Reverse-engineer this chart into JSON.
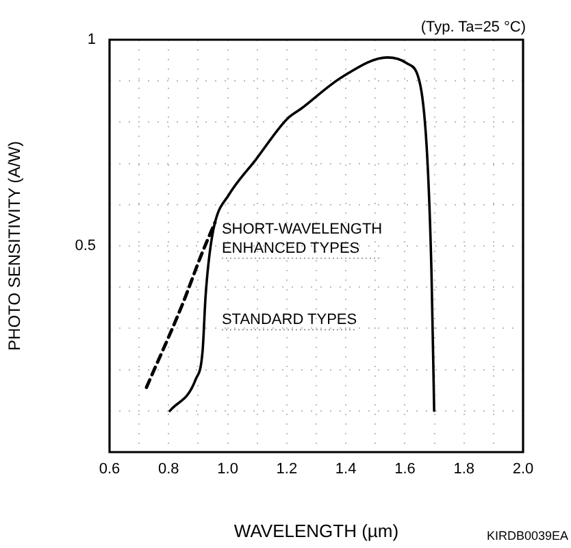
{
  "chart_data": {
    "type": "line",
    "xlabel": "WAVELENGTH (µm)",
    "ylabel": "PHOTO SENSITIVITY (A/W)",
    "annotations": [
      "(Typ. Ta=25 °C)",
      "KIRDB0039EA"
    ],
    "xlim": [
      0.6,
      2.0
    ],
    "xticks": [
      0.6,
      {
        "value": 0.7,
        "label": null
      },
      0.8,
      {
        "value": 0.9,
        "label": null
      },
      {
        "value": 1.0,
        "label": "1.0"
      },
      {
        "value": 1.1,
        "label": null
      },
      1.2,
      {
        "value": 1.3,
        "label": null
      },
      1.4,
      {
        "value": 1.5,
        "label": null
      },
      1.6,
      {
        "value": 1.7,
        "label": null
      },
      1.8,
      {
        "value": 1.9,
        "label": null
      },
      {
        "value": 2.0,
        "label": "2.0"
      }
    ],
    "ylim": [
      0,
      1
    ],
    "yticks": [
      {
        "value": 0,
        "label": null
      },
      {
        "value": 0.1,
        "label": null
      },
      {
        "value": 0.2,
        "label": null
      },
      {
        "value": 0.3,
        "label": null
      },
      {
        "value": 0.4,
        "label": null
      },
      0.5,
      {
        "value": 0.6,
        "label": null
      },
      {
        "value": 0.7,
        "label": null
      },
      {
        "value": 0.8,
        "label": null
      },
      {
        "value": 0.9,
        "label": null
      },
      1
    ],
    "grid": true,
    "legend": false,
    "marker": "none",
    "series": [
      {
        "name": "SHORT-WAVELENGTH ENHANCED TYPES",
        "color": "#000000",
        "line_style": "dashed",
        "x": [
          0.725,
          0.846,
          0.91,
          0.957
        ],
        "values": [
          0.157,
          0.357,
          0.477,
          0.557
        ]
      },
      {
        "name": "STANDARD TYPES",
        "color": "#000000",
        "line_style": "solid",
        "x": [
          0.804,
          0.892,
          0.915,
          0.925,
          0.938,
          0.957,
          1.003,
          1.096,
          1.2,
          1.249,
          1.388,
          1.541,
          1.606,
          1.652,
          1.676,
          1.69,
          1.699
        ],
        "values": [
          0.1,
          0.177,
          0.245,
          0.377,
          0.477,
          0.557,
          0.623,
          0.71,
          0.807,
          0.833,
          0.91,
          0.957,
          0.943,
          0.89,
          0.71,
          0.433,
          0.1
        ]
      }
    ]
  }
}
